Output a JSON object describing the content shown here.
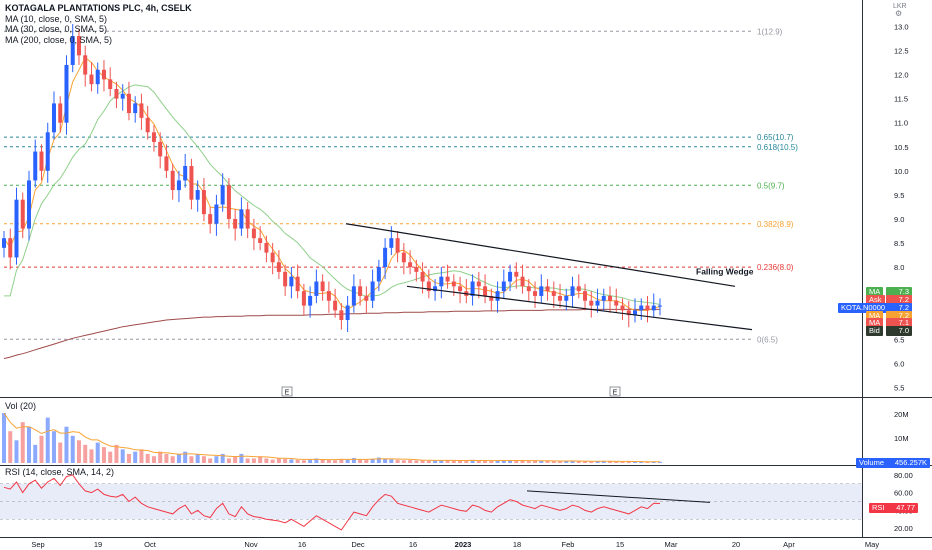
{
  "legend": {
    "title": "KOTAGALA PLANTATIONS PLC, 4h, CSELK",
    "ma10": "MA (10, close, 0, SMA, 5)",
    "ma30": "MA (30, close, 0, SMA, 5)",
    "ma200": "MA (200, close, 0, SMA, 5)"
  },
  "currency": "LKR",
  "volume_label": "Vol (20)",
  "rsi_label": "RSI (14, close, SMA, 14, 2)",
  "pattern_label": "Falling Wedge",
  "earnings_marker": "E",
  "colors": {
    "up": "#2962ff",
    "down": "#ef5350",
    "ma10": "#f7a233",
    "ma30": "#8fd08a",
    "ma200": "#a04a4a",
    "fib_grey": "#9598a1",
    "fib_teal": "#26889a",
    "fib_green": "#4caf50",
    "fib_orange": "#f7a233",
    "fib_red": "#e53935",
    "rsi_line": "#f23645",
    "rsi_band": "#e8ecf8"
  },
  "badges": [
    {
      "key": "MA",
      "value": "7.3",
      "color": "#4caf50"
    },
    {
      "key": "Ask",
      "value": "7.2",
      "color": "#ef5350"
    },
    {
      "key": "KOTA.N0000",
      "value": "7.2",
      "color": "#2962ff"
    },
    {
      "key": "MA",
      "value": "7.2",
      "color": "#f7a233"
    },
    {
      "key": "MA",
      "value": "7.1",
      "color": "#ef5350"
    },
    {
      "key": "Bid",
      "value": "7.0",
      "color": "#2e3a2e"
    }
  ],
  "volume_badge": {
    "key": "Volume",
    "value": "456.257K"
  },
  "rsi_badge": {
    "key": "RSI",
    "value": "47.77"
  },
  "chart_data": {
    "type": "candlestick",
    "title": "KOTAGALA PLANTATIONS PLC, 4h, CSELK",
    "price_ticks": [
      "13.0",
      "12.5",
      "12.0",
      "11.5",
      "11.0",
      "10.5",
      "10.0",
      "9.5",
      "9.0",
      "8.5",
      "8.0",
      "7.5",
      "7.0",
      "6.5",
      "6.0",
      "5.5"
    ],
    "price_range": [
      5.3,
      13.3
    ],
    "volume_ticks": [
      "20M",
      "10M"
    ],
    "rsi_ticks": [
      "80.00",
      "60.00",
      "40.00",
      "20.00"
    ],
    "rsi_range": [
      10,
      90
    ],
    "rsi_band": [
      30,
      70
    ],
    "x_ticks": [
      "Sep",
      "19",
      "Oct",
      "Nov",
      "16",
      "Dec",
      "16",
      "2023",
      "18",
      "Feb",
      "15",
      "Mar",
      "20",
      "Apr",
      "May"
    ],
    "fib_levels": [
      {
        "label": "1(12.9)",
        "price": 12.9,
        "color": "grey"
      },
      {
        "label": "0.65(10.7)",
        "price": 10.7,
        "color": "teal"
      },
      {
        "label": "0.618(10.5)",
        "price": 10.5,
        "color": "teal"
      },
      {
        "label": "0.5(9.7)",
        "price": 9.7,
        "color": "green"
      },
      {
        "label": "0.382(8.9)",
        "price": 8.9,
        "color": "orange"
      },
      {
        "label": "0.236(8.0)",
        "price": 8.0,
        "color": "red"
      },
      {
        "label": "0(6.5)",
        "price": 6.5,
        "color": "grey"
      }
    ],
    "wedge": {
      "upper": [
        [
          8.9,
          0.0
        ],
        [
          7.6,
          1.0
        ]
      ],
      "lower": [
        [
          7.6,
          0.0
        ],
        [
          6.7,
          1.0
        ]
      ]
    },
    "close_series": [
      8.6,
      8.2,
      9.4,
      8.8,
      9.8,
      10.4,
      10.0,
      10.8,
      11.4,
      11.0,
      12.2,
      12.8,
      12.4,
      12.0,
      11.8,
      12.1,
      11.9,
      11.7,
      11.5,
      11.6,
      11.2,
      11.4,
      11.1,
      10.8,
      10.6,
      10.3,
      10.0,
      9.6,
      9.8,
      10.1,
      9.4,
      9.6,
      9.1,
      8.9,
      9.3,
      9.7,
      9.0,
      8.8,
      9.2,
      8.8,
      8.6,
      8.5,
      8.3,
      8.1,
      7.9,
      7.6,
      7.8,
      7.5,
      7.2,
      7.4,
      7.7,
      7.5,
      7.3,
      7.1,
      6.9,
      7.2,
      7.6,
      7.4,
      7.3,
      7.7,
      8.0,
      8.4,
      8.6,
      8.3,
      8.1,
      8.0,
      7.9,
      7.7,
      7.5,
      7.6,
      7.8,
      7.7,
      7.6,
      7.5,
      7.4,
      7.7,
      7.6,
      7.4,
      7.3,
      7.5,
      7.7,
      7.9,
      7.8,
      7.6,
      7.5,
      7.4,
      7.6,
      7.5,
      7.4,
      7.3,
      7.4,
      7.6,
      7.5,
      7.3,
      7.2,
      7.3,
      7.4,
      7.3,
      7.2,
      7.1,
      7.0,
      7.1,
      7.2,
      7.1,
      7.2,
      7.2
    ],
    "ma200_series": [
      6.1,
      6.13,
      6.17,
      6.2,
      6.24,
      6.28,
      6.32,
      6.36,
      6.4,
      6.44,
      6.48,
      6.52,
      6.55,
      6.58,
      6.61,
      6.64,
      6.67,
      6.7,
      6.73,
      6.76,
      6.78,
      6.8,
      6.82,
      6.84,
      6.86,
      6.88,
      6.9,
      6.91,
      6.92,
      6.93,
      6.94,
      6.95,
      6.96,
      6.96,
      6.97,
      6.97,
      6.98,
      6.98,
      6.98,
      6.99,
      6.99,
      6.99,
      7.0,
      7.0,
      7.0,
      7.0,
      7.0,
      7.0,
      7.0,
      7.01,
      7.01,
      7.01,
      7.02,
      7.02,
      7.02,
      7.03,
      7.03,
      7.03,
      7.04,
      7.04,
      7.04,
      7.05,
      7.05,
      7.05,
      7.06,
      7.06,
      7.06,
      7.06,
      7.07,
      7.07,
      7.07,
      7.07,
      7.08,
      7.08,
      7.08,
      7.08,
      7.08,
      7.09,
      7.09,
      7.09,
      7.09,
      7.1,
      7.1,
      7.1,
      7.1,
      7.1,
      7.1,
      7.11,
      7.11,
      7.11,
      7.11,
      7.11,
      7.11,
      7.12,
      7.12,
      7.12,
      7.12,
      7.12,
      7.12,
      7.12,
      7.12,
      7.12,
      7.12,
      7.12,
      7.12,
      7.12
    ],
    "rsi_series": [
      66,
      64,
      72,
      60,
      70,
      74,
      65,
      72,
      76,
      68,
      78,
      80,
      70,
      62,
      60,
      64,
      58,
      56,
      55,
      58,
      50,
      55,
      48,
      44,
      42,
      40,
      38,
      36,
      42,
      46,
      36,
      40,
      34,
      32,
      42,
      48,
      36,
      33,
      44,
      36,
      33,
      32,
      30,
      29,
      28,
      26,
      30,
      26,
      22,
      28,
      34,
      30,
      26,
      22,
      18,
      28,
      38,
      36,
      34,
      44,
      52,
      58,
      56,
      48,
      46,
      44,
      42,
      40,
      38,
      42,
      46,
      44,
      42,
      40,
      39,
      46,
      44,
      40,
      38,
      44,
      48,
      52,
      50,
      46,
      44,
      42,
      46,
      44,
      42,
      40,
      42,
      46,
      44,
      40,
      38,
      42,
      44,
      42,
      40,
      38,
      36,
      40,
      44,
      42,
      48,
      47.77
    ],
    "volume_series": [
      22,
      14,
      10,
      18,
      16,
      8,
      12,
      20,
      14,
      9,
      16,
      12,
      10,
      8,
      6,
      9,
      7,
      5,
      8,
      6,
      4,
      5,
      6,
      4,
      3,
      5,
      4,
      3,
      4,
      5,
      3,
      4,
      3,
      2,
      3,
      4,
      2,
      3,
      4,
      2,
      2,
      3,
      2,
      1.5,
      2,
      1.8,
      1.6,
      1.4,
      1.2,
      1.5,
      2,
      1.6,
      1.4,
      1.2,
      1.8,
      1.4,
      2.2,
      1.6,
      1.4,
      1.8,
      2.4,
      2,
      1.6,
      1.4,
      1.2,
      1.3,
      1.1,
      1.2,
      1,
      1.1,
      1.3,
      1.2,
      1,
      0.9,
      1,
      1.4,
      1.2,
      1,
      0.9,
      1,
      1.2,
      1.3,
      1.1,
      1,
      0.8,
      0.9,
      1.1,
      1,
      0.8,
      0.7,
      0.9,
      1,
      0.8,
      0.7,
      0.6,
      0.8,
      0.9,
      0.7,
      0.6,
      0.5,
      0.6,
      0.7,
      0.6,
      0.5,
      0.6,
      0.5
    ]
  }
}
